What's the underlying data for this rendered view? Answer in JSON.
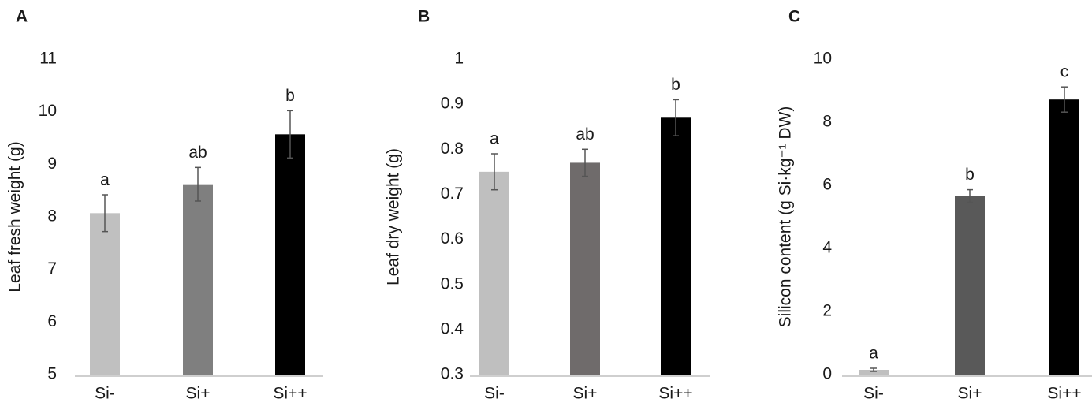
{
  "chart_data": [
    {
      "type": "bar",
      "title": "A",
      "ylabel": "Leaf fresh weight (g)",
      "categories": [
        "Si-",
        "Si+",
        "Si++"
      ],
      "values": [
        8.07,
        8.62,
        9.57
      ],
      "errors": [
        0.35,
        0.32,
        0.45
      ],
      "annotations": [
        "a",
        "ab",
        "b"
      ],
      "colors": [
        "#c0c0c0",
        "#7f7f7f",
        "#000000"
      ],
      "ylim": [
        5,
        11
      ],
      "yticks": [
        5,
        6,
        7,
        8,
        9,
        10,
        11
      ]
    },
    {
      "type": "bar",
      "title": "B",
      "ylabel": "Leaf dry weight (g)",
      "categories": [
        "Si-",
        "Si+",
        "Si++"
      ],
      "values": [
        0.75,
        0.77,
        0.87
      ],
      "errors": [
        0.04,
        0.03,
        0.04
      ],
      "annotations": [
        "a",
        "ab",
        "b"
      ],
      "colors": [
        "#bfbfbf",
        "#6f6b6b",
        "#000000"
      ],
      "ylim": [
        0.3,
        1
      ],
      "yticks": [
        0.3,
        0.4,
        0.5,
        0.6,
        0.7,
        0.8,
        0.9,
        1
      ]
    },
    {
      "type": "bar",
      "title": "C",
      "ylabel": "Silicon content (g Si·kg⁻¹ DW)",
      "categories": [
        "Si-",
        "Si+",
        "Si++"
      ],
      "values": [
        0.15,
        5.66,
        8.72
      ],
      "errors": [
        0.05,
        0.2,
        0.4
      ],
      "annotations": [
        "a",
        "b",
        "c"
      ],
      "colors": [
        "#bfbfbf",
        "#595959",
        "#000000"
      ],
      "ylim": [
        0,
        10
      ],
      "yticks": [
        0,
        2,
        4,
        6,
        8,
        10
      ]
    }
  ]
}
